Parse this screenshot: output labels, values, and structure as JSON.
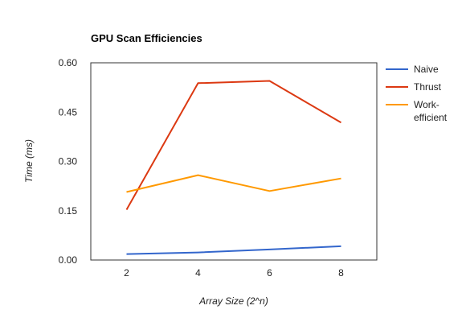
{
  "chart_data": {
    "type": "line",
    "title": "GPU Scan Efficiencies",
    "xlabel": "Array Size (2^n)",
    "ylabel": "Time (ms)",
    "x": [
      2,
      4,
      6,
      8
    ],
    "xlim": [
      1,
      9
    ],
    "ylim": [
      0,
      0.6
    ],
    "y_ticks": [
      "0.00",
      "0.15",
      "0.30",
      "0.45",
      "0.60"
    ],
    "x_ticks": [
      "2",
      "4",
      "6",
      "8"
    ],
    "grid": false,
    "legend_position": "right",
    "series": [
      {
        "name": "Naive",
        "color": "#3366cc",
        "values": [
          0.018,
          0.023,
          0.032,
          0.042
        ]
      },
      {
        "name": "Thrust",
        "color": "#dc3912",
        "values": [
          0.153,
          0.538,
          0.545,
          0.418
        ]
      },
      {
        "name": "Work-efficient",
        "legend_lines": [
          "Work-",
          "efficient"
        ],
        "color": "#ff9900",
        "values": [
          0.207,
          0.258,
          0.21,
          0.248
        ]
      }
    ]
  }
}
